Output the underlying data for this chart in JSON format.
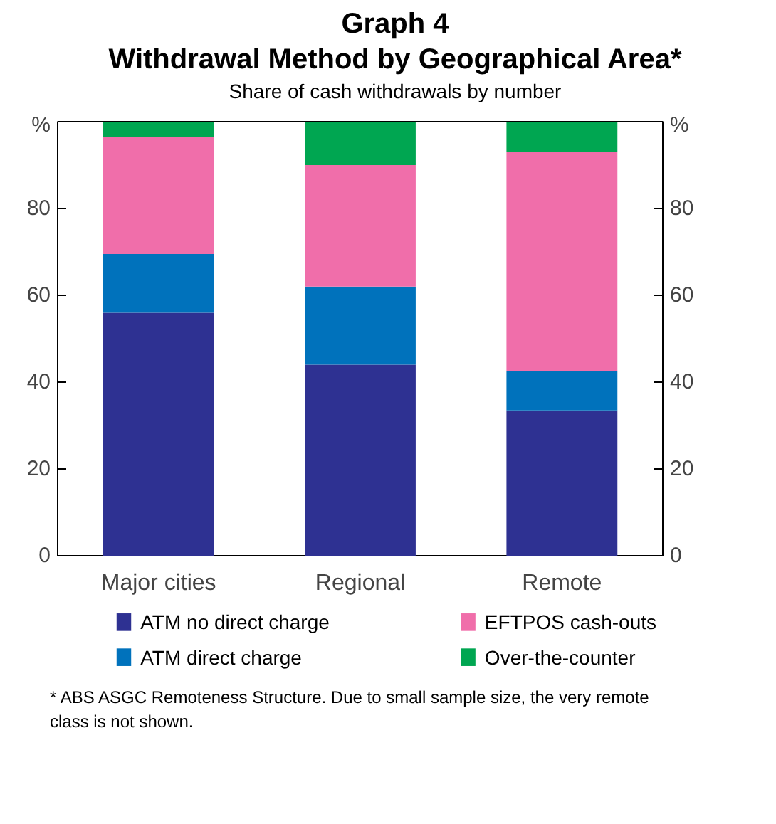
{
  "chart_data": {
    "type": "bar",
    "stacked": true,
    "title": "Graph 4\nWithdrawal Method by Geographical Area*",
    "subtitle": "Share of cash withdrawals by number",
    "categories": [
      "Major cities",
      "Regional",
      "Remote"
    ],
    "series": [
      {
        "name": "ATM no direct charge",
        "color": "#2e3192",
        "values": [
          56,
          44,
          33.5
        ]
      },
      {
        "name": "ATM direct charge",
        "color": "#0072bc",
        "values": [
          13.5,
          18,
          9
        ]
      },
      {
        "name": "EFTPOS cash-outs",
        "color": "#f06eaa",
        "values": [
          27,
          28,
          50.5
        ]
      },
      {
        "name": "Over-the-counter",
        "color": "#00a651",
        "values": [
          3.5,
          10,
          7
        ]
      }
    ],
    "ylim": [
      0,
      100
    ],
    "yticks": [
      0,
      20,
      40,
      60,
      80,
      {
        "value": 100,
        "label": "%"
      }
    ],
    "y2lim": [
      0,
      100
    ],
    "y2ticks": [
      0,
      20,
      40,
      60,
      80,
      {
        "value": 100,
        "label": "%"
      }
    ],
    "grid": false,
    "legend": "bottom",
    "annotations": [
      "* ABS ASGC Remoteness Structure. Due to small sample size, the very remote class is not shown."
    ]
  }
}
